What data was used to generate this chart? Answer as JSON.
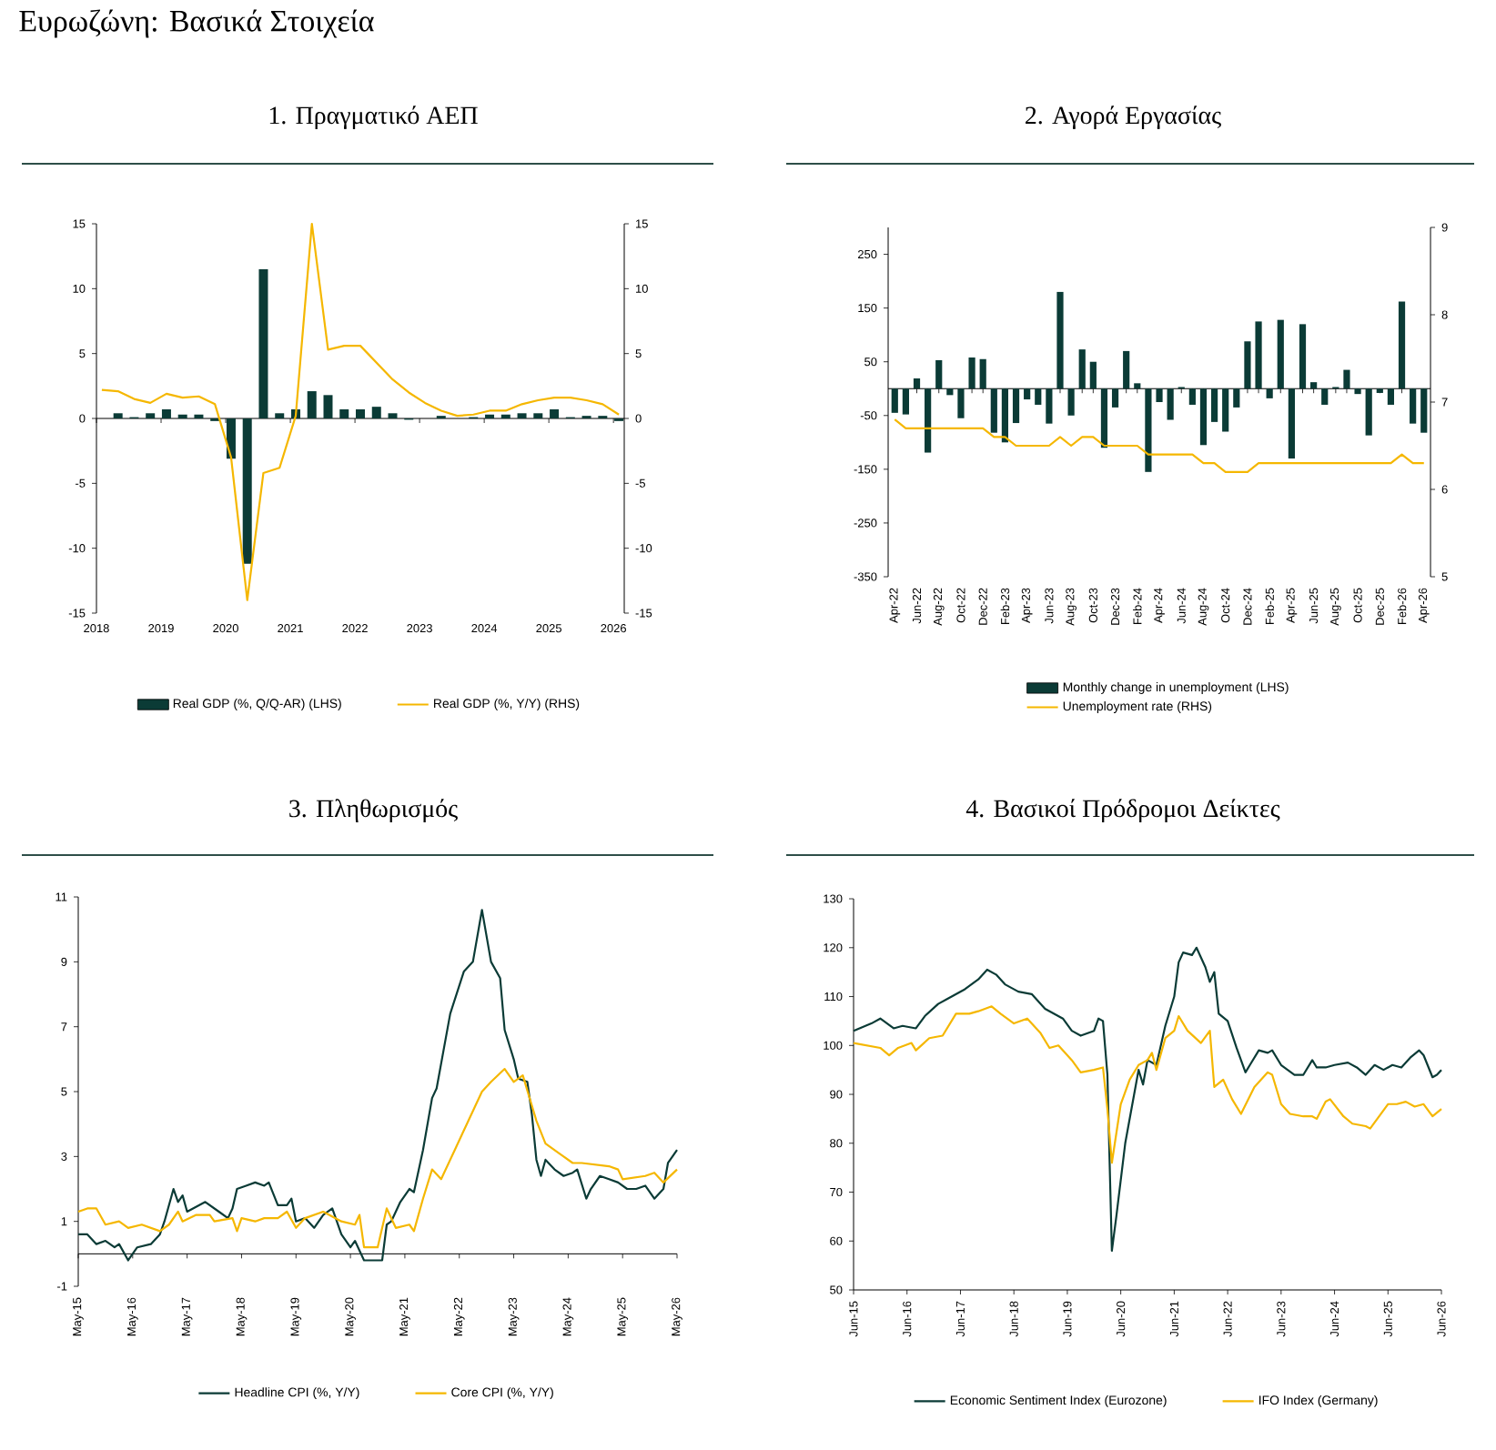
{
  "chart_data": [
    {
      "type": "bar",
      "title": "1. Πραγματικό ΑΕΠ",
      "annotations": [
        "Ευρωζώνη: Βασικά Στοιχεία"
      ],
      "xlim": [
        "2018",
        "2026-03"
      ],
      "xticks": [
        "2018",
        "2019",
        "2020",
        "2021",
        "2022",
        "2023",
        "2024",
        "2025",
        "2026"
      ],
      "ylim": [
        -15,
        15
      ],
      "yticks": [
        -15,
        -10,
        -5,
        0,
        5,
        10,
        15
      ],
      "y2lim": [
        -15,
        15
      ],
      "y2ticks": [
        -15,
        -10,
        -5,
        0,
        5,
        10,
        15
      ],
      "legend": "bottom",
      "series": [
        {
          "name": "Real GDP (%, Q/Q-AR) (LHS)",
          "type": "bar",
          "color": "#0b3b36",
          "x": [
            "2018-05",
            "2018-08",
            "2018-11",
            "2019-02",
            "2019-05",
            "2019-08",
            "2019-11",
            "2020-02",
            "2020-05",
            "2020-08",
            "2020-11",
            "2021-02",
            "2021-05",
            "2021-08",
            "2021-11",
            "2022-02",
            "2022-05",
            "2022-08",
            "2022-11",
            "2023-02",
            "2023-05",
            "2023-08",
            "2023-11",
            "2024-02",
            "2024-05",
            "2024-08",
            "2024-11",
            "2025-02",
            "2025-05",
            "2025-08",
            "2025-11",
            "2026-02"
          ],
          "values": [
            0.4,
            0.1,
            0.4,
            0.7,
            0.3,
            0.3,
            -0.2,
            -3.1,
            -11.2,
            11.5,
            0.4,
            0.7,
            2.1,
            1.8,
            0.7,
            0.7,
            0.9,
            0.4,
            -0.1,
            0.0,
            0.2,
            0.0,
            0.1,
            0.3,
            0.3,
            0.4,
            0.4,
            0.7,
            0.1,
            0.2,
            0.2,
            -0.2
          ]
        },
        {
          "name": "Real GDP (%, Y/Y) (RHS)",
          "type": "line",
          "axis": "y2",
          "color": "#f5b700",
          "x": [
            "2018-02",
            "2018-05",
            "2018-08",
            "2018-11",
            "2019-02",
            "2019-05",
            "2019-08",
            "2019-11",
            "2020-02",
            "2020-05",
            "2020-08",
            "2020-11",
            "2021-02",
            "2021-05",
            "2021-08",
            "2021-11",
            "2022-02",
            "2022-05",
            "2022-08",
            "2022-11",
            "2023-02",
            "2023-05",
            "2023-08",
            "2023-11",
            "2024-02",
            "2024-05",
            "2024-08",
            "2024-11",
            "2025-02",
            "2025-05",
            "2025-08",
            "2025-11",
            "2026-02"
          ],
          "values": [
            2.2,
            2.1,
            1.5,
            1.2,
            1.9,
            1.6,
            1.7,
            1.1,
            -3.0,
            -14.0,
            -4.2,
            -3.8,
            0.2,
            15.0,
            5.3,
            5.6,
            5.6,
            4.3,
            3.0,
            2.0,
            1.2,
            0.6,
            0.2,
            0.3,
            0.6,
            0.6,
            1.1,
            1.4,
            1.6,
            1.6,
            1.4,
            1.1,
            0.3
          ]
        }
      ]
    },
    {
      "type": "bar",
      "title": "2. Αγορά Εργασίας",
      "categories": [
        "Apr-22",
        null,
        "Jun-22",
        null,
        "Aug-22",
        null,
        "Oct-22",
        null,
        "Dec-22",
        null,
        "Feb-23",
        null,
        "Apr-23",
        null,
        "Jun-23",
        null,
        "Aug-23",
        null,
        "Oct-23",
        null,
        "Dec-23",
        null,
        "Feb-24",
        null,
        "Apr-24",
        null,
        "Jun-24",
        null,
        "Aug-24",
        null,
        "Oct-24",
        null,
        "Dec-24",
        null,
        "Feb-25",
        null,
        "Apr-25",
        null,
        "Jun-25",
        null,
        "Aug-25",
        null,
        "Oct-25",
        null,
        "Dec-25",
        null,
        "Feb-26",
        null,
        "Apr-26"
      ],
      "ylim": [
        -350,
        300
      ],
      "yticks": [
        -350,
        -250,
        -150,
        -50,
        50,
        150,
        250
      ],
      "y2lim": [
        5,
        9
      ],
      "y2ticks": [
        5,
        6,
        7,
        8,
        9
      ],
      "legend": "bottom",
      "series": [
        {
          "name": "Monthly change in unemployment (LHS)",
          "type": "bar",
          "color": "#0b3b36",
          "values": [
            -45,
            -48,
            19,
            -119,
            53,
            -12,
            -55,
            58,
            55,
            -82,
            -100,
            -64,
            -20,
            -30,
            -65,
            180,
            -50,
            73,
            50,
            -110,
            -35,
            70,
            10,
            -155,
            -25,
            -58,
            3,
            -30,
            -105,
            -62,
            -80,
            -35,
            88,
            125,
            -18,
            128,
            -130,
            120,
            12,
            -30,
            3,
            35,
            -10,
            -87,
            -8,
            -30,
            162,
            -65,
            -82
          ]
        },
        {
          "name": "Unemployment rate (RHS)",
          "type": "line",
          "axis": "y2",
          "color": "#f5b700",
          "values": [
            6.8,
            6.7,
            6.7,
            6.7,
            6.7,
            6.7,
            6.7,
            6.7,
            6.7,
            6.6,
            6.6,
            6.5,
            6.5,
            6.5,
            6.5,
            6.6,
            6.5,
            6.6,
            6.6,
            6.5,
            6.5,
            6.5,
            6.5,
            6.4,
            6.4,
            6.4,
            6.4,
            6.4,
            6.3,
            6.3,
            6.2,
            6.2,
            6.2,
            6.3,
            6.3,
            6.3,
            6.3,
            6.3,
            6.3,
            6.3,
            6.3,
            6.3,
            6.3,
            6.3,
            6.3,
            6.3,
            6.4,
            6.3,
            6.3
          ]
        }
      ]
    },
    {
      "type": "line",
      "title": "3. Πληθωρισμός",
      "xlim": [
        "2015-05",
        "2026-05"
      ],
      "xticks": [
        {
          "value": "2015-05",
          "label": "May-15"
        },
        {
          "value": "2016-05",
          "label": "May-16"
        },
        {
          "value": "2017-05",
          "label": "May-17"
        },
        {
          "value": "2018-05",
          "label": "May-18"
        },
        {
          "value": "2019-05",
          "label": "May-19"
        },
        {
          "value": "2020-05",
          "label": "May-20"
        },
        {
          "value": "2021-05",
          "label": "May-21"
        },
        {
          "value": "2022-05",
          "label": "May-22"
        },
        {
          "value": "2023-05",
          "label": "May-23"
        },
        {
          "value": "2024-05",
          "label": "May-24"
        },
        {
          "value": "2025-05",
          "label": "May-25"
        },
        {
          "value": "2026-05",
          "label": "May-26"
        }
      ],
      "ylim": [
        -1,
        11
      ],
      "yticks": [
        -1,
        1,
        3,
        5,
        7,
        9,
        11
      ],
      "legend": "bottom",
      "series": [
        {
          "name": "Headline CPI (%, Y/Y)",
          "color": "#0b3b36",
          "x": [
            "2015-05",
            "2015-07",
            "2015-09",
            "2015-11",
            "2016-01",
            "2016-02",
            "2016-04",
            "2016-06",
            "2016-09",
            "2016-11",
            "2016-12",
            "2017-02",
            "2017-03",
            "2017-04",
            "2017-05",
            "2017-09",
            "2017-12",
            "2018-02",
            "2018-03",
            "2018-04",
            "2018-06",
            "2018-08",
            "2018-10",
            "2018-11",
            "2019-01",
            "2019-03",
            "2019-04",
            "2019-05",
            "2019-07",
            "2019-09",
            "2019-11",
            "2020-01",
            "2020-03",
            "2020-05",
            "2020-06",
            "2020-08",
            "2020-12",
            "2021-01",
            "2021-02",
            "2021-04",
            "2021-06",
            "2021-07",
            "2021-09",
            "2021-11",
            "2021-12",
            "2022-03",
            "2022-06",
            "2022-08",
            "2022-10",
            "2022-12",
            "2023-02",
            "2023-03",
            "2023-05",
            "2023-06",
            "2023-08",
            "2023-09",
            "2023-10",
            "2023-11",
            "2023-12",
            "2024-02",
            "2024-04",
            "2024-06",
            "2024-07",
            "2024-09",
            "2024-10",
            "2024-12",
            "2025-02",
            "2025-04",
            "2025-06",
            "2025-08",
            "2025-10",
            "2025-12",
            "2026-02",
            "2026-03",
            "2026-05"
          ],
          "values": [
            0.6,
            0.6,
            0.3,
            0.4,
            0.2,
            0.3,
            -0.2,
            0.2,
            0.3,
            0.6,
            1.0,
            2.0,
            1.6,
            1.8,
            1.3,
            1.6,
            1.3,
            1.1,
            1.4,
            2.0,
            2.1,
            2.2,
            2.1,
            2.2,
            1.5,
            1.5,
            1.7,
            1.0,
            1.1,
            0.8,
            1.2,
            1.4,
            0.6,
            0.2,
            0.4,
            -0.2,
            -0.2,
            0.9,
            1.0,
            1.6,
            2.0,
            1.9,
            3.2,
            4.8,
            5.1,
            7.4,
            8.7,
            9.0,
            10.6,
            9.0,
            8.5,
            6.9,
            6.0,
            5.4,
            5.3,
            4.3,
            2.9,
            2.4,
            2.9,
            2.6,
            2.4,
            2.5,
            2.6,
            1.7,
            2.0,
            2.4,
            2.3,
            2.2,
            2.0,
            2.0,
            2.1,
            1.7,
            2.0,
            2.8,
            3.2
          ]
        },
        {
          "name": "Core CPI (%, Y/Y)",
          "color": "#f5b700",
          "x": [
            "2015-05",
            "2015-07",
            "2015-09",
            "2015-11",
            "2016-02",
            "2016-04",
            "2016-07",
            "2016-11",
            "2017-01",
            "2017-03",
            "2017-04",
            "2017-07",
            "2017-10",
            "2017-11",
            "2018-03",
            "2018-04",
            "2018-05",
            "2018-08",
            "2018-10",
            "2019-01",
            "2019-03",
            "2019-05",
            "2019-07",
            "2019-11",
            "2020-03",
            "2020-06",
            "2020-07",
            "2020-08",
            "2020-11",
            "2021-01",
            "2021-03",
            "2021-06",
            "2021-07",
            "2021-09",
            "2021-11",
            "2022-01",
            "2022-04",
            "2022-06",
            "2022-10",
            "2022-12",
            "2023-03",
            "2023-05",
            "2023-07",
            "2023-10",
            "2023-12",
            "2024-03",
            "2024-06",
            "2024-08",
            "2025-02",
            "2025-04",
            "2025-05",
            "2025-10",
            "2025-12",
            "2026-02",
            "2026-05"
          ],
          "values": [
            1.3,
            1.4,
            1.4,
            0.9,
            1.0,
            0.8,
            0.9,
            0.7,
            0.9,
            1.3,
            1.0,
            1.2,
            1.2,
            1.0,
            1.1,
            0.7,
            1.1,
            1.0,
            1.1,
            1.1,
            1.3,
            0.8,
            1.1,
            1.3,
            1.0,
            0.9,
            1.2,
            0.2,
            0.2,
            1.4,
            0.8,
            0.9,
            0.7,
            1.7,
            2.6,
            2.3,
            3.2,
            3.8,
            5.0,
            5.3,
            5.7,
            5.3,
            5.5,
            4.1,
            3.4,
            3.1,
            2.8,
            2.8,
            2.7,
            2.6,
            2.3,
            2.4,
            2.5,
            2.2,
            2.6
          ]
        }
      ]
    },
    {
      "type": "line",
      "title": "4. Βασικοί Πρόδρομοι Δείκτες",
      "xlim": [
        "2015-06",
        "2026-06"
      ],
      "xticks": [
        {
          "value": "2015-06",
          "label": "Jun-15"
        },
        {
          "value": "2016-06",
          "label": "Jun-16"
        },
        {
          "value": "2017-06",
          "label": "Jun-17"
        },
        {
          "value": "2018-06",
          "label": "Jun-18"
        },
        {
          "value": "2019-06",
          "label": "Jun-19"
        },
        {
          "value": "2020-06",
          "label": "Jun-20"
        },
        {
          "value": "2021-06",
          "label": "Jun-21"
        },
        {
          "value": "2022-06",
          "label": "Jun-22"
        },
        {
          "value": "2023-06",
          "label": "Jun-23"
        },
        {
          "value": "2024-06",
          "label": "Jun-24"
        },
        {
          "value": "2025-06",
          "label": "Jun-25"
        },
        {
          "value": "2026-06",
          "label": "Jun-26"
        }
      ],
      "ylim": [
        50,
        130
      ],
      "yticks": [
        50,
        60,
        70,
        80,
        90,
        100,
        110,
        120,
        130
      ],
      "legend": "bottom",
      "series": [
        {
          "name": "Economic Sentiment Index (Eurozone)",
          "color": "#0b3b36",
          "x": [
            "2015-06",
            "2015-10",
            "2015-12",
            "2016-03",
            "2016-05",
            "2016-08",
            "2016-10",
            "2017-01",
            "2017-03",
            "2017-07",
            "2017-10",
            "2017-12",
            "2018-02",
            "2018-04",
            "2018-07",
            "2018-10",
            "2019-01",
            "2019-05",
            "2019-07",
            "2019-09",
            "2019-12",
            "2020-01",
            "2020-02",
            "2020-03",
            "2020-04",
            "2020-05",
            "2020-07",
            "2020-09",
            "2020-10",
            "2020-11",
            "2020-12",
            "2021-02",
            "2021-04",
            "2021-06",
            "2021-07",
            "2021-08",
            "2021-10",
            "2021-11",
            "2022-01",
            "2022-02",
            "2022-03",
            "2022-04",
            "2022-06",
            "2022-08",
            "2022-10",
            "2022-11",
            "2023-01",
            "2023-03",
            "2023-04",
            "2023-06",
            "2023-09",
            "2023-11",
            "2024-01",
            "2024-02",
            "2024-04",
            "2024-06",
            "2024-09",
            "2024-11",
            "2025-01",
            "2025-03",
            "2025-05",
            "2025-07",
            "2025-09",
            "2025-11",
            "2026-01",
            "2026-02",
            "2026-04",
            "2026-05",
            "2026-06"
          ],
          "values": [
            103,
            104.5,
            105.5,
            103.5,
            104,
            103.5,
            106,
            108.5,
            109.5,
            111.5,
            113.5,
            115.5,
            114.5,
            112.5,
            111,
            110.5,
            107.5,
            105.5,
            103,
            102,
            103,
            105.5,
            105,
            94,
            58,
            65,
            80,
            90,
            95,
            92,
            97,
            96,
            104,
            110,
            117,
            119,
            118.5,
            120,
            116,
            113,
            115,
            106.5,
            105,
            99.5,
            94.5,
            96,
            99,
            98.5,
            99,
            96,
            94,
            94,
            97,
            95.5,
            95.5,
            96,
            96.5,
            95.5,
            94,
            96,
            95,
            96,
            95.5,
            97.5,
            99,
            98,
            93.5,
            94,
            95
          ]
        },
        {
          "name": "IFO Index (Germany)",
          "color": "#f5b700",
          "x": [
            "2015-06",
            "2015-09",
            "2015-12",
            "2016-02",
            "2016-04",
            "2016-07",
            "2016-08",
            "2016-11",
            "2017-02",
            "2017-05",
            "2017-08",
            "2017-10",
            "2018-01",
            "2018-03",
            "2018-06",
            "2018-09",
            "2018-12",
            "2019-02",
            "2019-04",
            "2019-07",
            "2019-09",
            "2019-12",
            "2020-02",
            "2020-03",
            "2020-04",
            "2020-06",
            "2020-08",
            "2020-10",
            "2020-12",
            "2021-01",
            "2021-02",
            "2021-04",
            "2021-06",
            "2021-07",
            "2021-09",
            "2021-12",
            "2022-02",
            "2022-03",
            "2022-05",
            "2022-07",
            "2022-09",
            "2022-12",
            "2023-03",
            "2023-04",
            "2023-06",
            "2023-08",
            "2023-11",
            "2024-01",
            "2024-02",
            "2024-04",
            "2024-05",
            "2024-08",
            "2024-10",
            "2025-01",
            "2025-02",
            "2025-04",
            "2025-06",
            "2025-08",
            "2025-10",
            "2025-12",
            "2026-02",
            "2026-04",
            "2026-06"
          ],
          "values": [
            100.5,
            100,
            99.5,
            98,
            99.5,
            100.5,
            99,
            101.5,
            102,
            106.5,
            106.5,
            107,
            108,
            106.5,
            104.5,
            105.5,
            102.5,
            99.5,
            100,
            97,
            94.5,
            95,
            95.5,
            87,
            76,
            88,
            93,
            96,
            97,
            98.5,
            95,
            101.5,
            103,
            106,
            103,
            100.5,
            103,
            91.5,
            93,
            89,
            86,
            91.5,
            94.5,
            94,
            88,
            86,
            85.5,
            85.5,
            85,
            88.5,
            89,
            85.5,
            84,
            83.5,
            83,
            85.5,
            88,
            88,
            88.5,
            87.5,
            88,
            85.5,
            87
          ]
        }
      ]
    }
  ]
}
